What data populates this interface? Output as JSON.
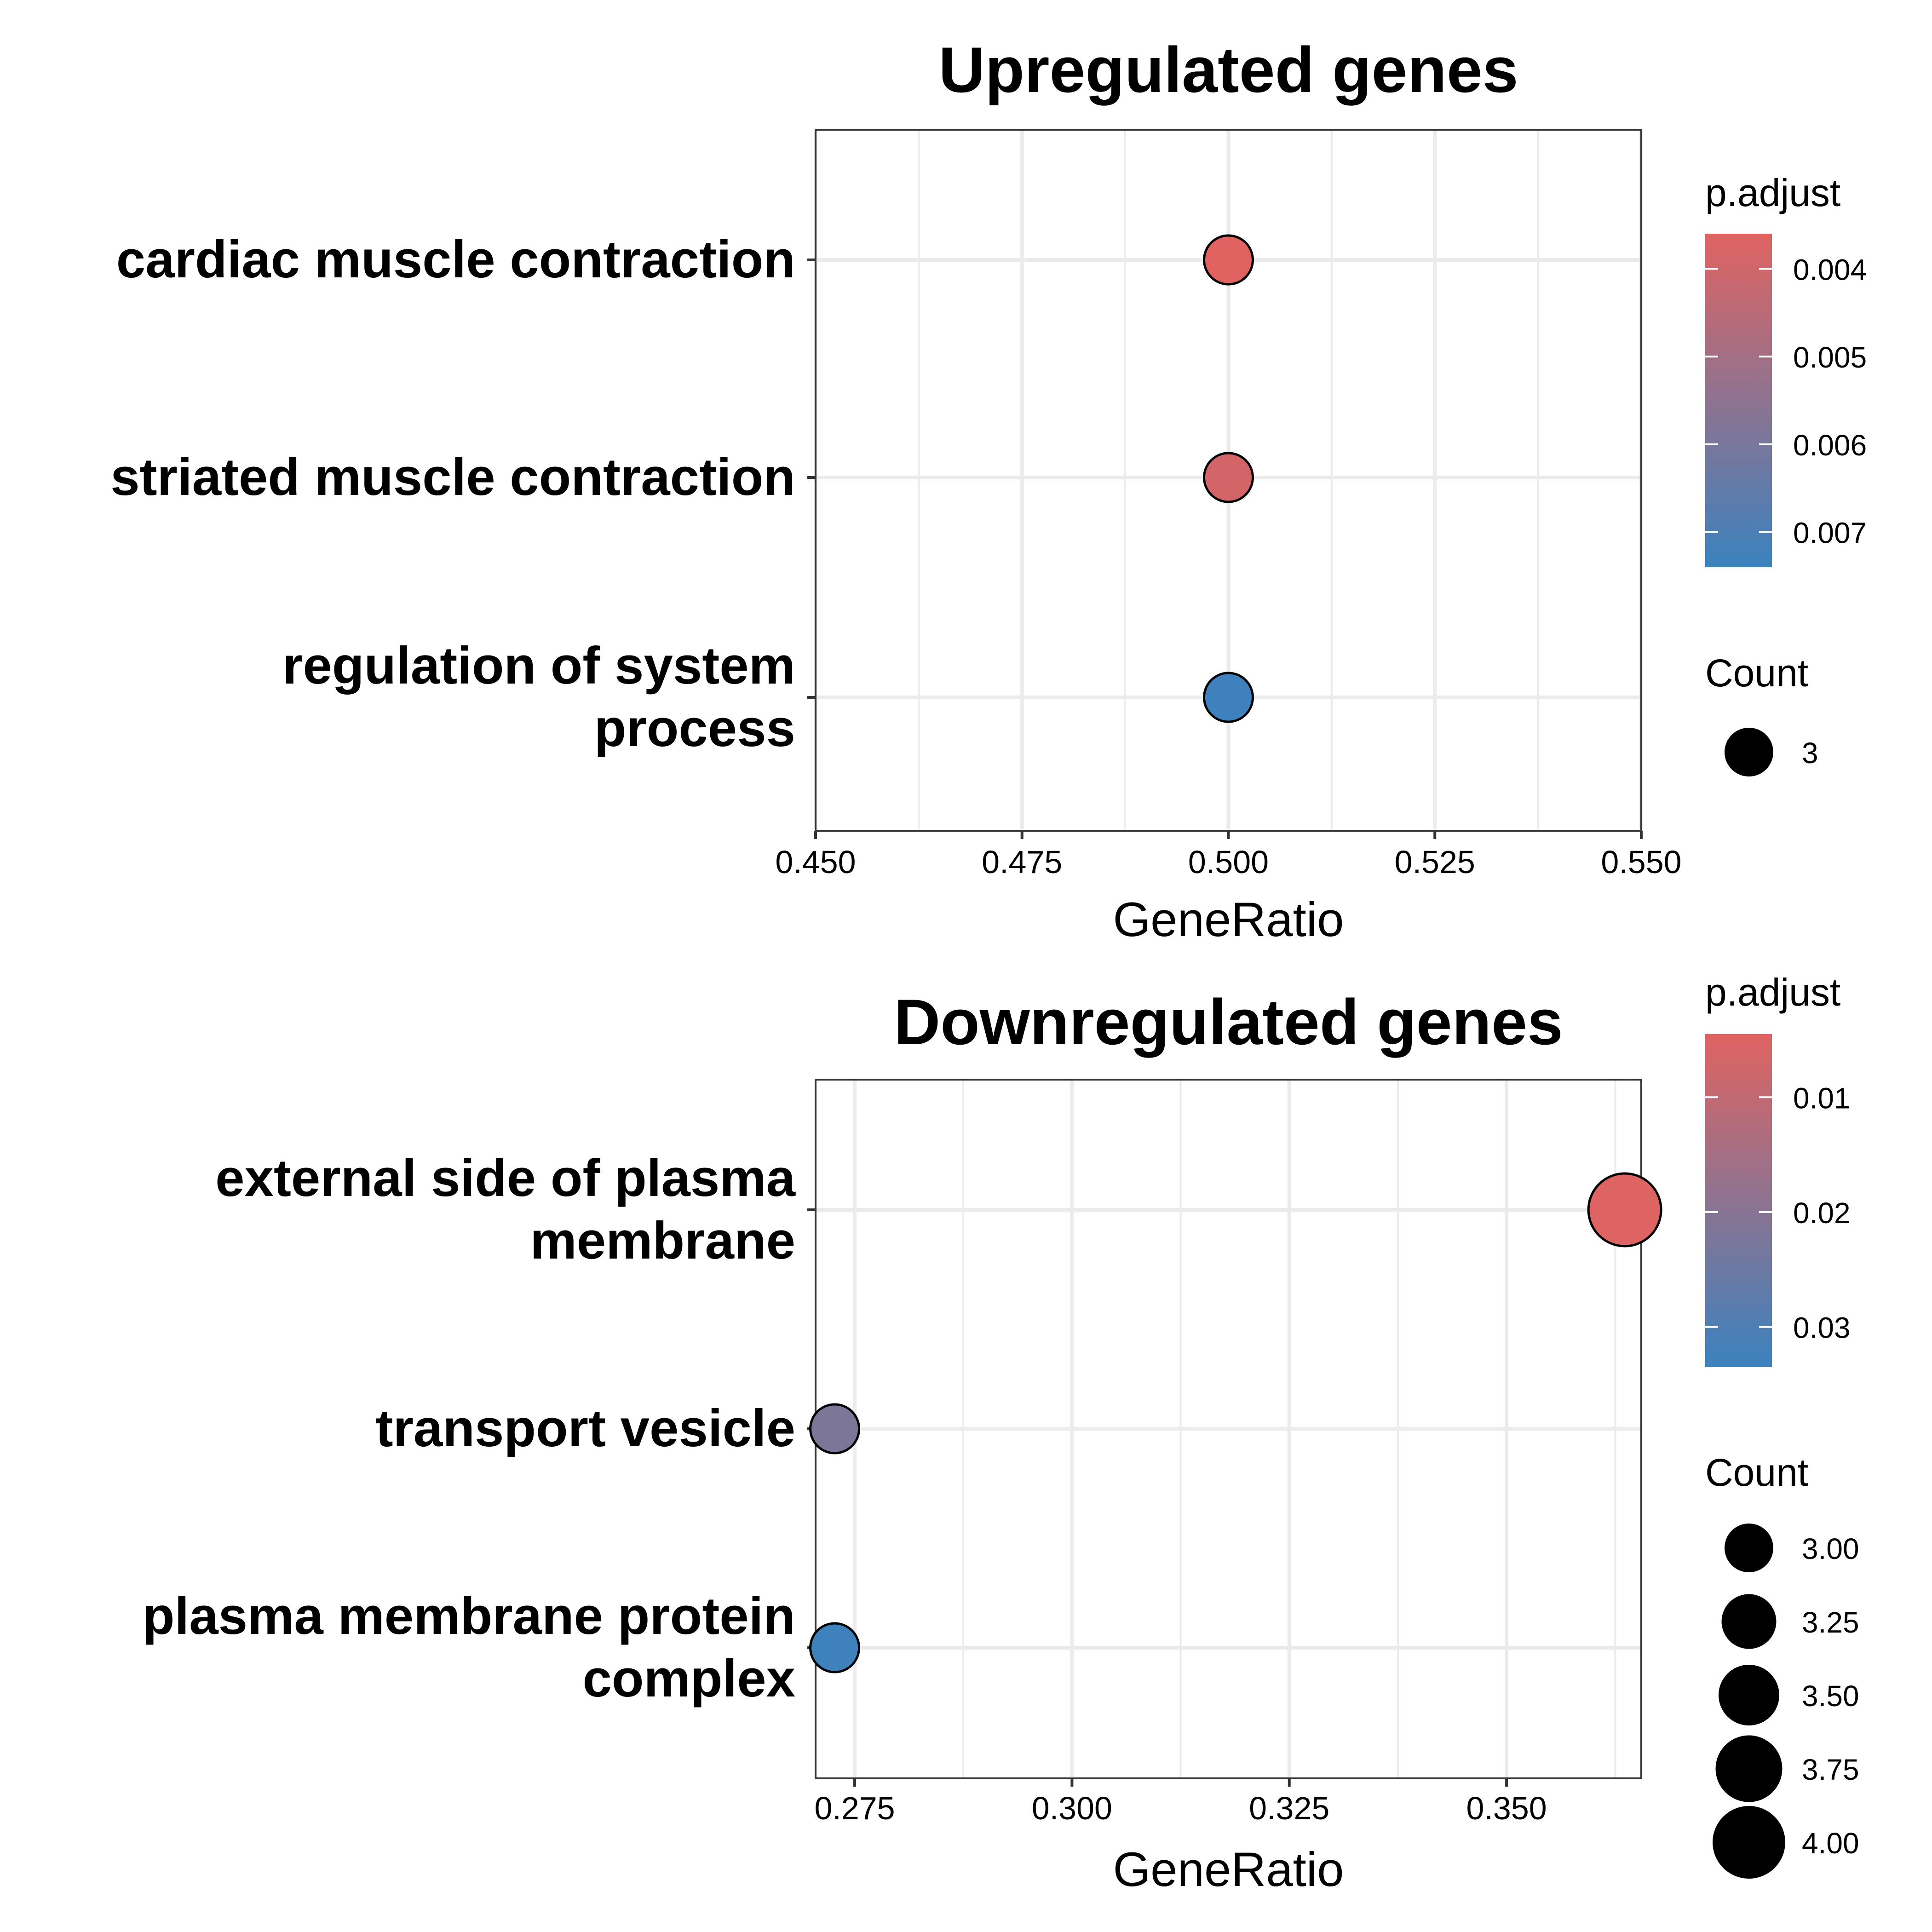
{
  "chart_data": [
    {
      "type": "scatter",
      "title": "Upregulated genes",
      "xlabel": "GeneRatio",
      "ylabel": "",
      "xlim": [
        0.45,
        0.55
      ],
      "x_ticks": [
        "0.450",
        "0.475",
        "0.500",
        "0.525",
        "0.550"
      ],
      "x_tick_values": [
        0.45,
        0.475,
        0.5,
        0.525,
        0.55
      ],
      "grid": true,
      "categories": [
        {
          "label": [
            "cardiac muscle contraction"
          ],
          "x": 0.5,
          "p_adjust": 0.0036,
          "count": 3
        },
        {
          "label": [
            "striated muscle contraction"
          ],
          "x": 0.5,
          "p_adjust": 0.0039,
          "count": 3
        },
        {
          "label": [
            "regulation of system",
            "process"
          ],
          "x": 0.5,
          "p_adjust": 0.0073,
          "count": 3
        }
      ],
      "color_legend": {
        "title": "p.adjust",
        "range": [
          0.0036,
          0.0074
        ],
        "low_color": "#e06361",
        "high_color": "#3b82be",
        "ticks": [
          {
            "value": 0.004,
            "label": "0.004"
          },
          {
            "value": 0.005,
            "label": "0.005"
          },
          {
            "value": 0.006,
            "label": "0.006"
          },
          {
            "value": 0.007,
            "label": "0.007"
          }
        ]
      },
      "size_legend": {
        "title": "Count",
        "items": [
          {
            "label": "3",
            "value": 3
          }
        ]
      }
    },
    {
      "type": "scatter",
      "title": "Downregulated genes",
      "xlabel": "GeneRatio",
      "ylabel": "",
      "xlim": [
        0.2705,
        0.3655
      ],
      "x_ticks": [
        "0.275",
        "0.300",
        "0.325",
        "0.350"
      ],
      "x_tick_values": [
        0.275,
        0.3,
        0.325,
        0.35
      ],
      "grid": true,
      "categories": [
        {
          "label": [
            "external side of plasma",
            "membrane"
          ],
          "x": 0.3636,
          "p_adjust": 0.005,
          "count": 4
        },
        {
          "label": [
            "transport vesicle"
          ],
          "x": 0.2727,
          "p_adjust": 0.022,
          "count": 3
        },
        {
          "label": [
            "plasma membrane protein",
            "complex"
          ],
          "x": 0.2727,
          "p_adjust": 0.033,
          "count": 3
        }
      ],
      "color_legend": {
        "title": "p.adjust",
        "range": [
          0.0045,
          0.0335
        ],
        "low_color": "#e06361",
        "high_color": "#3b82be",
        "ticks": [
          {
            "value": 0.01,
            "label": "0.01"
          },
          {
            "value": 0.02,
            "label": "0.02"
          },
          {
            "value": 0.03,
            "label": "0.03"
          }
        ]
      },
      "size_legend": {
        "title": "Count",
        "items": [
          {
            "label": "3.00",
            "value": 3.0
          },
          {
            "label": "3.25",
            "value": 3.25
          },
          {
            "label": "3.50",
            "value": 3.5
          },
          {
            "label": "3.75",
            "value": 3.75
          },
          {
            "label": "4.00",
            "value": 4.0
          }
        ]
      }
    }
  ]
}
